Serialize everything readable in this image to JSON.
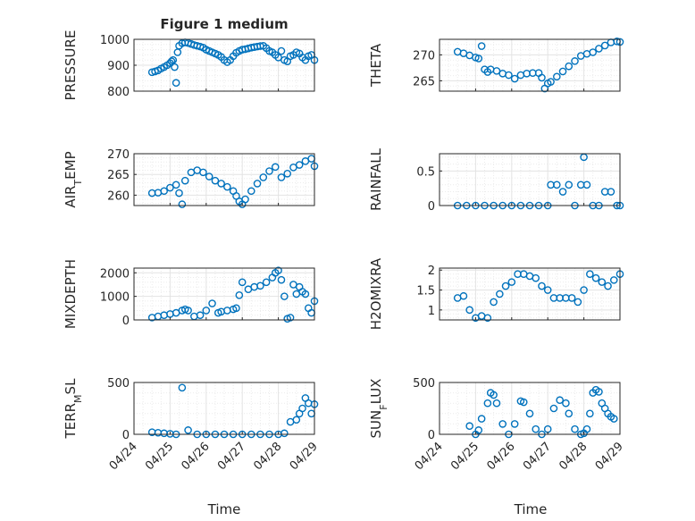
{
  "figure": {
    "title": "Figure 1 medium",
    "marker_color": "#0072bd",
    "xlabel_left": "Time",
    "xlabel_right": "Time"
  },
  "chart_data": [
    {
      "type": "scatter",
      "panel": "pressure",
      "ylabel": "PRESSURE",
      "ylim": [
        800,
        1000
      ],
      "yticks": [
        800,
        900,
        1000
      ],
      "xlim": [
        "04/24",
        "04/29"
      ],
      "xticks": [
        "04/24",
        "04/25",
        "04/26",
        "04/27",
        "04/28",
        "04/29"
      ],
      "grid": true,
      "x": [
        "04/24 12:00",
        "04/24 14:00",
        "04/24 16:00",
        "04/24 18:00",
        "04/24 20:00",
        "04/24 22:00",
        "04/25 00:00",
        "04/25 01:00",
        "04/25 02:00",
        "04/25 03:00",
        "04/25 04:00",
        "04/25 05:00",
        "04/25 06:00",
        "04/25 08:00",
        "04/25 10:00",
        "04/25 12:00",
        "04/25 14:00",
        "04/25 16:00",
        "04/25 18:00",
        "04/25 20:00",
        "04/25 22:00",
        "04/26 00:00",
        "04/26 02:00",
        "04/26 04:00",
        "04/26 06:00",
        "04/26 08:00",
        "04/26 10:00",
        "04/26 12:00",
        "04/26 14:00",
        "04/26 16:00",
        "04/26 18:00",
        "04/26 20:00",
        "04/26 22:00",
        "04/27 00:00",
        "04/27 02:00",
        "04/27 04:00",
        "04/27 06:00",
        "04/27 08:00",
        "04/27 10:00",
        "04/27 12:00",
        "04/27 14:00",
        "04/27 16:00",
        "04/27 18:00",
        "04/27 20:00",
        "04/27 22:00",
        "04/28 00:00",
        "04/28 02:00",
        "04/28 04:00",
        "04/28 06:00",
        "04/28 08:00",
        "04/28 10:00",
        "04/28 12:00",
        "04/28 14:00",
        "04/28 16:00",
        "04/28 18:00",
        "04/28 20:00",
        "04/28 22:00",
        "04/29 00:00"
      ],
      "y": [
        873,
        876,
        880,
        887,
        893,
        900,
        908,
        915,
        920,
        893,
        832,
        950,
        975,
        985,
        988,
        986,
        982,
        978,
        975,
        972,
        968,
        960,
        955,
        950,
        945,
        940,
        932,
        920,
        912,
        920,
        935,
        948,
        955,
        960,
        962,
        965,
        968,
        970,
        972,
        974,
        975,
        966,
        955,
        950,
        940,
        930,
        955,
        920,
        915,
        935,
        940,
        950,
        945,
        930,
        920,
        935,
        940,
        920
      ]
    },
    {
      "type": "scatter",
      "panel": "theta",
      "ylabel": "THETA",
      "ylim": [
        263,
        273
      ],
      "yticks": [
        265,
        270
      ],
      "xlim": [
        "04/24",
        "04/29"
      ],
      "xticks": [
        "04/24",
        "04/25",
        "04/26",
        "04/27",
        "04/28",
        "04/29"
      ],
      "grid": true,
      "x": [
        "04/24 12:00",
        "04/24 16:00",
        "04/24 20:00",
        "04/25 00:00",
        "04/25 02:00",
        "04/25 04:00",
        "04/25 06:00",
        "04/25 08:00",
        "04/25 10:00",
        "04/25 14:00",
        "04/25 18:00",
        "04/25 22:00",
        "04/26 02:00",
        "04/26 06:00",
        "04/26 10:00",
        "04/26 14:00",
        "04/26 18:00",
        "04/26 20:00",
        "04/26 22:00",
        "04/27 00:00",
        "04/27 02:00",
        "04/27 06:00",
        "04/27 10:00",
        "04/27 14:00",
        "04/27 18:00",
        "04/27 22:00",
        "04/28 02:00",
        "04/28 06:00",
        "04/28 10:00",
        "04/28 14:00",
        "04/28 18:00",
        "04/28 22:00",
        "04/29 00:00"
      ],
      "y": [
        270.6,
        270.3,
        269.9,
        269.5,
        269.3,
        271.7,
        267.2,
        266.7,
        267.2,
        266.9,
        266.4,
        266.1,
        265.4,
        266.1,
        266.4,
        266.5,
        266.5,
        265.6,
        263.5,
        264.5,
        264.8,
        265.8,
        266.8,
        267.8,
        268.8,
        269.8,
        270.2,
        270.5,
        271.2,
        271.8,
        272.4,
        272.6,
        272.5
      ]
    },
    {
      "type": "scatter",
      "panel": "air_temp",
      "ylabel": "AIR_TEMP",
      "ylim": [
        257.5,
        270
      ],
      "yticks": [
        260,
        265,
        270
      ],
      "xlim": [
        "04/24",
        "04/29"
      ],
      "xticks": [
        "04/24",
        "04/25",
        "04/26",
        "04/27",
        "04/28",
        "04/29"
      ],
      "grid": true,
      "x": [
        "04/24 12:00",
        "04/24 16:00",
        "04/24 20:00",
        "04/25 00:00",
        "04/25 04:00",
        "04/25 06:00",
        "04/25 08:00",
        "04/25 10:00",
        "04/25 14:00",
        "04/25 18:00",
        "04/25 22:00",
        "04/26 02:00",
        "04/26 06:00",
        "04/26 10:00",
        "04/26 14:00",
        "04/26 18:00",
        "04/26 20:00",
        "04/26 22:00",
        "04/27 00:00",
        "04/27 02:00",
        "04/27 06:00",
        "04/27 10:00",
        "04/27 14:00",
        "04/27 18:00",
        "04/27 22:00",
        "04/28 02:00",
        "04/28 06:00",
        "04/28 10:00",
        "04/28 14:00",
        "04/28 18:00",
        "04/28 22:00",
        "04/29 00:00"
      ],
      "y": [
        260.5,
        260.6,
        261.0,
        261.8,
        262.5,
        260.5,
        257.8,
        263.5,
        265.5,
        266.0,
        265.5,
        264.5,
        263.5,
        262.8,
        262.0,
        261.0,
        259.8,
        258.5,
        257.8,
        259.0,
        261.0,
        262.8,
        264.3,
        265.8,
        266.8,
        264.3,
        265.2,
        266.7,
        267.3,
        268.2,
        268.8,
        267.0
      ]
    },
    {
      "type": "scatter",
      "panel": "rainfall",
      "ylabel": "RAINFALL",
      "ylim": [
        0,
        0.75
      ],
      "yticks": [
        0,
        0.5
      ],
      "xlim": [
        "04/24",
        "04/29"
      ],
      "xticks": [
        "04/24",
        "04/25",
        "04/26",
        "04/27",
        "04/28",
        "04/29"
      ],
      "grid": true,
      "x": [
        "04/24 12:00",
        "04/24 18:00",
        "04/25 00:00",
        "04/25 06:00",
        "04/25 12:00",
        "04/25 18:00",
        "04/26 00:00",
        "04/26 06:00",
        "04/26 12:00",
        "04/26 18:00",
        "04/27 00:00",
        "04/27 02:00",
        "04/27 06:00",
        "04/27 10:00",
        "04/27 14:00",
        "04/27 18:00",
        "04/27 22:00",
        "04/28 00:00",
        "04/28 02:00",
        "04/28 06:00",
        "04/28 10:00",
        "04/28 14:00",
        "04/28 18:00",
        "04/28 22:00",
        "04/29 00:00"
      ],
      "y": [
        0,
        0,
        0,
        0,
        0,
        0,
        0,
        0,
        0,
        0,
        0,
        0.3,
        0.3,
        0.2,
        0.3,
        0,
        0.3,
        0.7,
        0.3,
        0,
        0,
        0.2,
        0.2,
        0,
        0
      ]
    },
    {
      "type": "scatter",
      "panel": "mixdepth",
      "ylabel": "MIXDEPTH",
      "ylim": [
        0,
        2200
      ],
      "yticks": [
        0,
        1000,
        2000
      ],
      "xlim": [
        "04/24",
        "04/29"
      ],
      "xticks": [
        "04/24",
        "04/25",
        "04/26",
        "04/27",
        "04/28",
        "04/29"
      ],
      "grid": true,
      "x": [
        "04/24 12:00",
        "04/24 16:00",
        "04/24 20:00",
        "04/25 00:00",
        "04/25 04:00",
        "04/25 08:00",
        "04/25 10:00",
        "04/25 12:00",
        "04/25 16:00",
        "04/25 20:00",
        "04/26 00:00",
        "04/26 04:00",
        "04/26 08:00",
        "04/26 10:00",
        "04/26 14:00",
        "04/26 18:00",
        "04/26 20:00",
        "04/26 22:00",
        "04/27 00:00",
        "04/27 04:00",
        "04/27 08:00",
        "04/27 12:00",
        "04/27 16:00",
        "04/27 20:00",
        "04/27 22:00",
        "04/28 00:00",
        "04/28 02:00",
        "04/28 04:00",
        "04/28 06:00",
        "04/28 08:00",
        "04/28 10:00",
        "04/28 12:00",
        "04/28 14:00",
        "04/28 16:00",
        "04/28 18:00",
        "04/28 20:00",
        "04/28 22:00",
        "04/29 00:00"
      ],
      "y": [
        100,
        150,
        200,
        250,
        300,
        400,
        450,
        400,
        150,
        200,
        400,
        700,
        300,
        350,
        400,
        450,
        500,
        1050,
        1600,
        1300,
        1400,
        1450,
        1600,
        1800,
        2000,
        2100,
        1700,
        1000,
        50,
        100,
        1500,
        1100,
        1400,
        1200,
        1100,
        500,
        300,
        800
      ]
    },
    {
      "type": "scatter",
      "panel": "h2omixra",
      "ylabel": "H2OMIXRA",
      "ylim": [
        0.75,
        2.05
      ],
      "yticks": [
        1,
        1.5,
        2
      ],
      "xlim": [
        "04/24",
        "04/29"
      ],
      "xticks": [
        "04/24",
        "04/25",
        "04/26",
        "04/27",
        "04/28",
        "04/29"
      ],
      "grid": true,
      "x": [
        "04/24 12:00",
        "04/24 16:00",
        "04/24 20:00",
        "04/25 00:00",
        "04/25 04:00",
        "04/25 08:00",
        "04/25 12:00",
        "04/25 16:00",
        "04/25 20:00",
        "04/26 00:00",
        "04/26 04:00",
        "04/26 08:00",
        "04/26 12:00",
        "04/26 16:00",
        "04/26 20:00",
        "04/27 00:00",
        "04/27 04:00",
        "04/27 08:00",
        "04/27 12:00",
        "04/27 16:00",
        "04/27 20:00",
        "04/28 00:00",
        "04/28 04:00",
        "04/28 08:00",
        "04/28 12:00",
        "04/28 16:00",
        "04/28 20:00",
        "04/29 00:00"
      ],
      "y": [
        1.3,
        1.35,
        1.0,
        0.8,
        0.85,
        0.8,
        1.2,
        1.4,
        1.6,
        1.7,
        1.9,
        1.9,
        1.85,
        1.8,
        1.6,
        1.5,
        1.3,
        1.3,
        1.3,
        1.3,
        1.2,
        1.5,
        1.9,
        1.8,
        1.7,
        1.6,
        1.75,
        1.9
      ]
    },
    {
      "type": "scatter",
      "panel": "terr_msl",
      "ylabel": "TERR_MSL",
      "ylim": [
        0,
        500
      ],
      "yticks": [
        0,
        500
      ],
      "xlim": [
        "04/24",
        "04/29"
      ],
      "xticks": [
        "04/24",
        "04/25",
        "04/26",
        "04/27",
        "04/28",
        "04/29"
      ],
      "grid": true,
      "x": [
        "04/24 12:00",
        "04/24 16:00",
        "04/24 20:00",
        "04/25 00:00",
        "04/25 04:00",
        "04/25 08:00",
        "04/25 12:00",
        "04/25 18:00",
        "04/26 00:00",
        "04/26 06:00",
        "04/26 12:00",
        "04/26 18:00",
        "04/27 00:00",
        "04/27 06:00",
        "04/27 12:00",
        "04/27 18:00",
        "04/28 00:00",
        "04/28 04:00",
        "04/28 08:00",
        "04/28 12:00",
        "04/28 14:00",
        "04/28 16:00",
        "04/28 18:00",
        "04/28 20:00",
        "04/28 22:00",
        "04/29 00:00"
      ],
      "y": [
        20,
        15,
        10,
        5,
        0,
        450,
        40,
        0,
        0,
        0,
        0,
        0,
        0,
        0,
        0,
        0,
        0,
        10,
        120,
        140,
        200,
        250,
        350,
        300,
        200,
        290
      ]
    },
    {
      "type": "scatter",
      "panel": "sun_flux",
      "ylabel": "SUN_FLUX",
      "ylim": [
        0,
        500
      ],
      "yticks": [
        0,
        500
      ],
      "xlim": [
        "04/24",
        "04/29"
      ],
      "xticks": [
        "04/24",
        "04/25",
        "04/26",
        "04/27",
        "04/28",
        "04/29"
      ],
      "grid": true,
      "x": [
        "04/24 20:00",
        "04/25 00:00",
        "04/25 02:00",
        "04/25 04:00",
        "04/25 08:00",
        "04/25 10:00",
        "04/25 12:00",
        "04/25 14:00",
        "04/25 18:00",
        "04/25 22:00",
        "04/26 02:00",
        "04/26 06:00",
        "04/26 08:00",
        "04/26 12:00",
        "04/26 16:00",
        "04/26 20:00",
        "04/27 00:00",
        "04/27 04:00",
        "04/27 08:00",
        "04/27 12:00",
        "04/27 14:00",
        "04/27 18:00",
        "04/27 22:00",
        "04/28 00:00",
        "04/28 02:00",
        "04/28 04:00",
        "04/28 06:00",
        "04/28 08:00",
        "04/28 10:00",
        "04/28 12:00",
        "04/28 14:00",
        "04/28 16:00",
        "04/28 18:00",
        "04/28 20:00"
      ],
      "y": [
        80,
        0,
        40,
        150,
        300,
        400,
        380,
        300,
        100,
        0,
        100,
        320,
        310,
        200,
        50,
        0,
        50,
        250,
        330,
        300,
        200,
        50,
        0,
        10,
        50,
        200,
        400,
        430,
        410,
        300,
        250,
        200,
        170,
        150
      ]
    }
  ]
}
